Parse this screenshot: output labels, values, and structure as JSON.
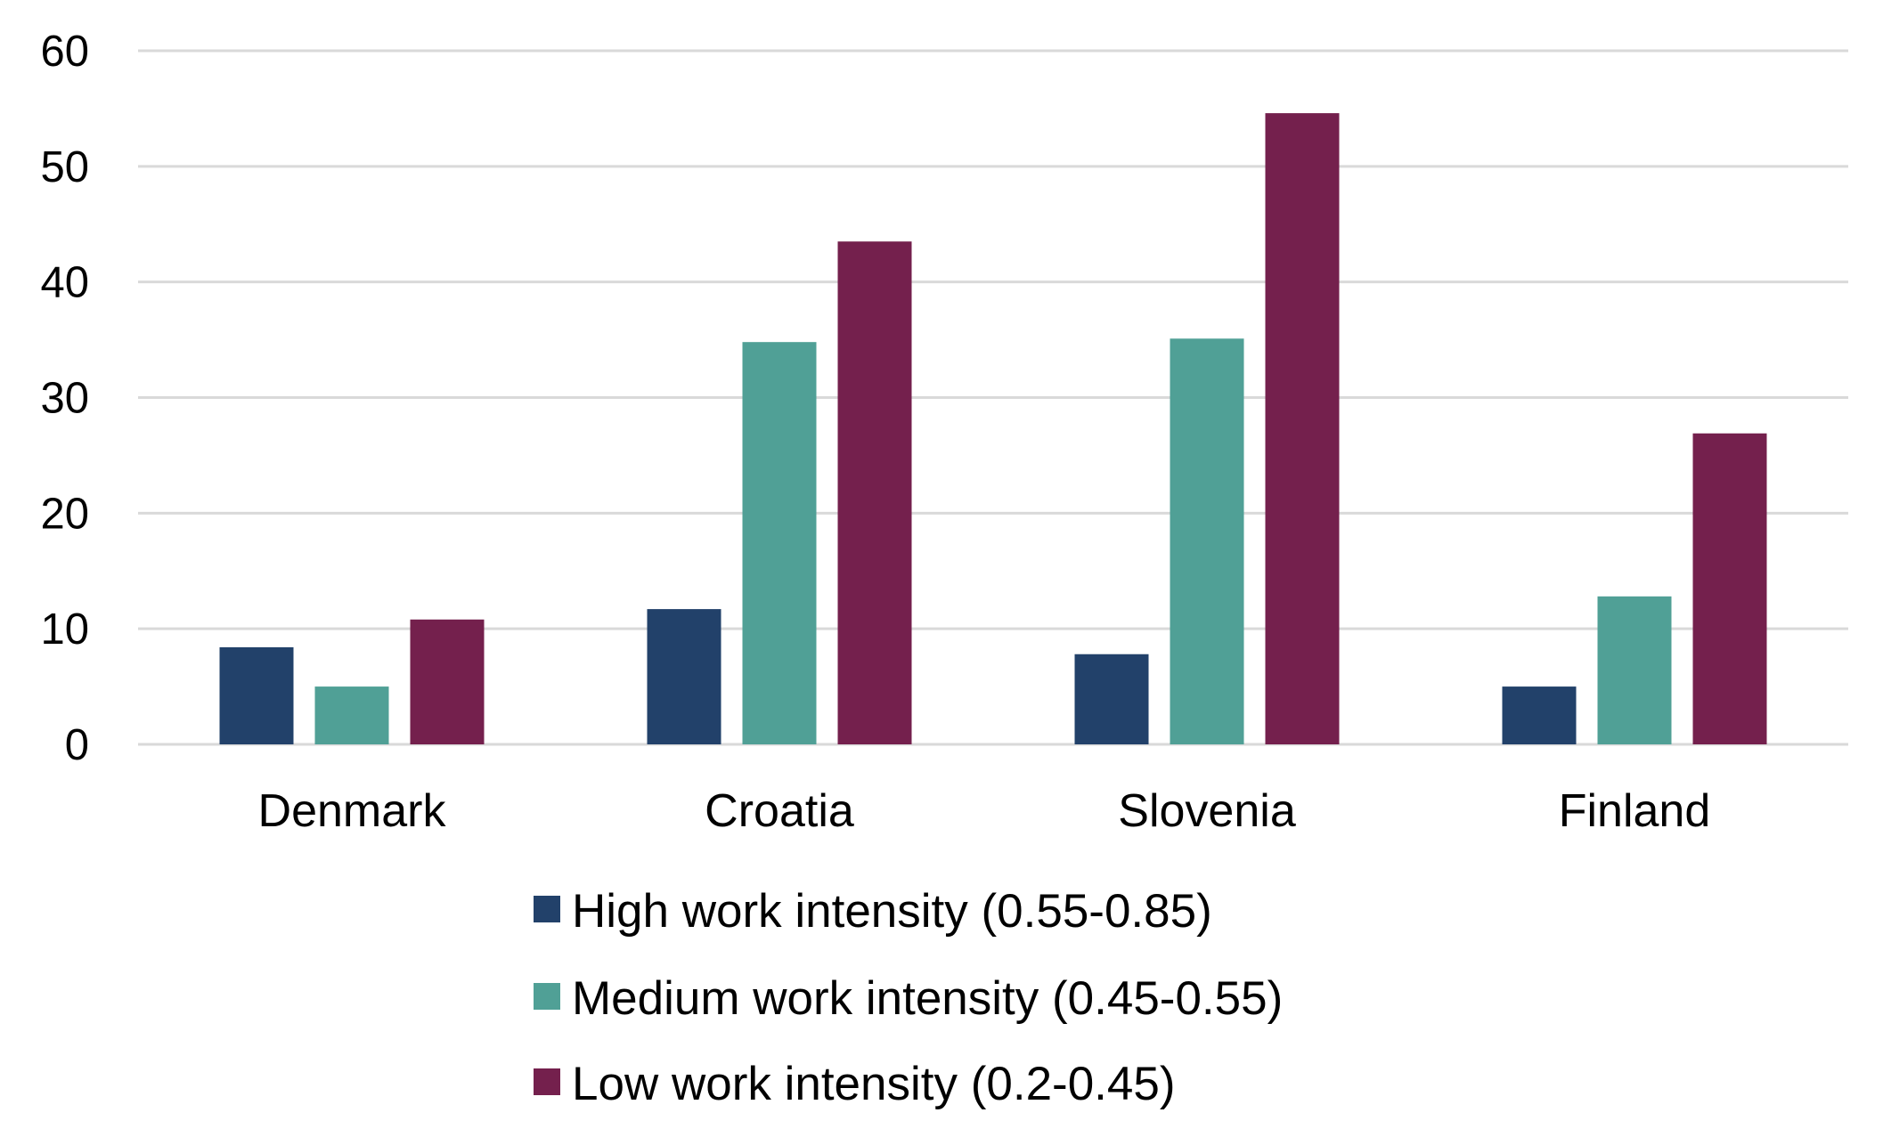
{
  "chart_data": {
    "type": "bar",
    "title": "",
    "xlabel": "",
    "ylabel": "",
    "categories": [
      "Denmark",
      "Croatia",
      "Slovenia",
      "Finland"
    ],
    "ylim": [
      0,
      60
    ],
    "yticks": [
      "0",
      "10",
      "20",
      "30",
      "40",
      "50",
      "60"
    ],
    "grid": true,
    "legend_position": "bottom",
    "series": [
      {
        "name": "High work intensity (0.55-0.85)",
        "color": "#22416A",
        "values": [
          8.4,
          11.7,
          7.8,
          5.0
        ]
      },
      {
        "name": "Medium work intensity (0.45-0.55)",
        "color": "#50A096",
        "values": [
          5.0,
          34.8,
          35.1,
          12.8
        ]
      },
      {
        "name": "Low work intensity (0.2-0.45)",
        "color": "#74204D",
        "values": [
          10.8,
          43.5,
          54.6,
          26.9
        ]
      }
    ]
  }
}
